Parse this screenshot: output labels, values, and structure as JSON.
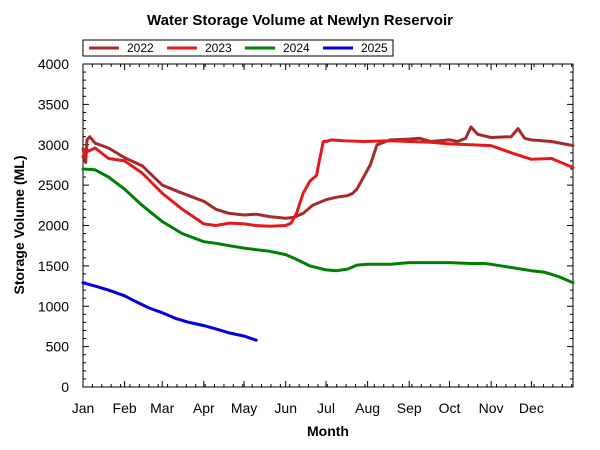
{
  "chart_data": {
    "type": "line",
    "title": "Water Storage Volume at Newlyn Reservoir",
    "xlabel": "Month",
    "ylabel": "Storage Volume (ML)",
    "x_unit": "day of year",
    "xlim": [
      1,
      366
    ],
    "ylim": [
      0,
      4000
    ],
    "yticks": [
      0,
      500,
      1000,
      1500,
      2000,
      2500,
      3000,
      3500,
      4000
    ],
    "xticks": [
      {
        "label": "Jan",
        "day": 1
      },
      {
        "label": "Feb",
        "day": 32
      },
      {
        "label": "Mar",
        "day": 60
      },
      {
        "label": "Apr",
        "day": 91
      },
      {
        "label": "May",
        "day": 121
      },
      {
        "label": "Jun",
        "day": 152
      },
      {
        "label": "Jul",
        "day": 182
      },
      {
        "label": "Aug",
        "day": 213
      },
      {
        "label": "Sep",
        "day": 244
      },
      {
        "label": "Oct",
        "day": 274
      },
      {
        "label": "Nov",
        "day": 305
      },
      {
        "label": "Dec",
        "day": 335
      }
    ],
    "grid": false,
    "legend": "top-left",
    "series": [
      {
        "name": "2022",
        "color": "#a52a2a",
        "x": [
          1,
          3,
          4,
          6,
          10,
          20,
          32,
          45,
          60,
          75,
          91,
          100,
          110,
          121,
          130,
          140,
          152,
          158,
          165,
          172,
          182,
          190,
          198,
          202,
          205,
          210,
          215,
          220,
          230,
          244,
          252,
          260,
          274,
          280,
          286,
          290,
          295,
          305,
          320,
          325,
          330,
          335,
          350,
          366
        ],
        "y": [
          2950,
          2780,
          3060,
          3100,
          3020,
          2960,
          2840,
          2740,
          2500,
          2400,
          2300,
          2200,
          2150,
          2130,
          2140,
          2110,
          2090,
          2100,
          2150,
          2250,
          2320,
          2350,
          2370,
          2400,
          2450,
          2600,
          2750,
          3000,
          3060,
          3070,
          3080,
          3040,
          3060,
          3040,
          3080,
          3220,
          3130,
          3090,
          3100,
          3200,
          3080,
          3060,
          3040,
          2990
        ]
      },
      {
        "name": "2023",
        "color": "#e31a1c",
        "x": [
          1,
          3,
          5,
          10,
          20,
          32,
          45,
          60,
          75,
          91,
          100,
          110,
          121,
          130,
          140,
          152,
          156,
          160,
          165,
          170,
          175,
          177,
          180,
          182,
          186,
          195,
          210,
          230,
          244,
          260,
          274,
          290,
          305,
          320,
          335,
          350,
          360,
          366
        ],
        "y": [
          2850,
          2950,
          2920,
          2960,
          2830,
          2800,
          2650,
          2400,
          2200,
          2020,
          2000,
          2030,
          2020,
          2000,
          1990,
          2000,
          2030,
          2150,
          2400,
          2550,
          2620,
          2800,
          3040,
          3040,
          3060,
          3050,
          3040,
          3050,
          3040,
          3030,
          3010,
          3000,
          2990,
          2900,
          2820,
          2830,
          2760,
          2720
        ]
      },
      {
        "name": "2024",
        "color": "#008000",
        "x": [
          1,
          10,
          20,
          32,
          45,
          60,
          75,
          91,
          100,
          110,
          121,
          130,
          140,
          152,
          160,
          170,
          182,
          190,
          198,
          205,
          213,
          230,
          244,
          260,
          274,
          290,
          300,
          305,
          320,
          335,
          345,
          355,
          366
        ],
        "y": [
          2700,
          2690,
          2600,
          2450,
          2250,
          2050,
          1900,
          1800,
          1780,
          1750,
          1720,
          1700,
          1680,
          1640,
          1580,
          1500,
          1450,
          1440,
          1460,
          1510,
          1520,
          1520,
          1540,
          1540,
          1540,
          1530,
          1530,
          1520,
          1480,
          1440,
          1420,
          1370,
          1290
        ]
      },
      {
        "name": "2025",
        "color": "#0000e0",
        "x": [
          1,
          10,
          20,
          32,
          40,
          50,
          60,
          70,
          80,
          91,
          100,
          110,
          121,
          130
        ],
        "y": [
          1290,
          1250,
          1200,
          1130,
          1060,
          980,
          920,
          850,
          800,
          760,
          720,
          670,
          630,
          580
        ]
      }
    ]
  }
}
